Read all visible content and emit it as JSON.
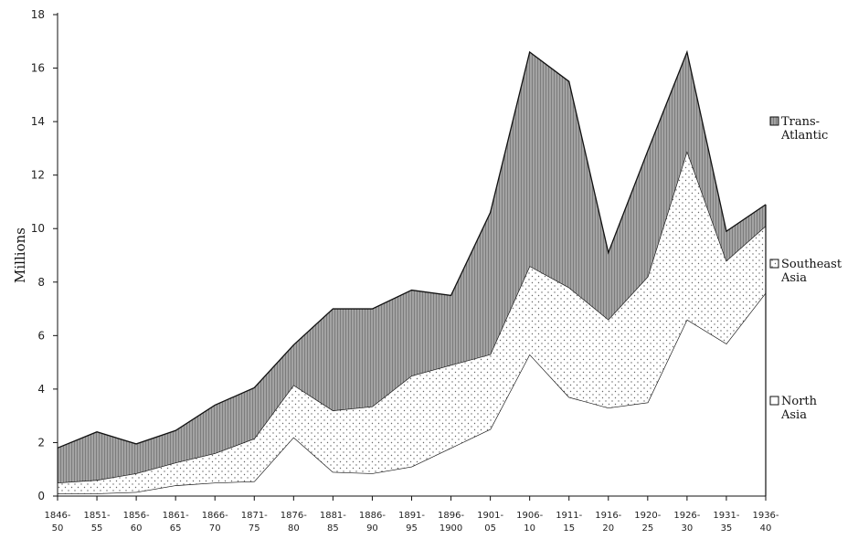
{
  "chart_data": {
    "type": "area",
    "stacked": true,
    "ylabel": "Millions",
    "xlabel": "",
    "title": "",
    "ylim": [
      0,
      18
    ],
    "yticks": [
      0,
      2,
      4,
      6,
      8,
      10,
      12,
      14,
      16,
      18
    ],
    "categories": [
      [
        "1846-",
        "50"
      ],
      [
        "1851-",
        "55"
      ],
      [
        "1856-",
        "60"
      ],
      [
        "1861-",
        "65"
      ],
      [
        "1866-",
        "70"
      ],
      [
        "1871-",
        "75"
      ],
      [
        "1876-",
        "80"
      ],
      [
        "1881-",
        "85"
      ],
      [
        "1886-",
        "90"
      ],
      [
        "1891-",
        "95"
      ],
      [
        "1896-",
        "1900"
      ],
      [
        "1901-",
        "05"
      ],
      [
        "1906-",
        "10"
      ],
      [
        "1911-",
        "15"
      ],
      [
        "1916-",
        "20"
      ],
      [
        "1920-",
        "25"
      ],
      [
        "1926-",
        "30"
      ],
      [
        "1931-",
        "35"
      ],
      [
        "1936-",
        "40"
      ]
    ],
    "legend_position": "right",
    "series": [
      {
        "name": "North Asia",
        "legend_lines": [
          "North",
          "Asia"
        ],
        "pattern": "plain",
        "color": "#ffffff",
        "values": [
          0.1,
          0.1,
          0.15,
          0.4,
          0.5,
          0.55,
          2.2,
          0.9,
          0.85,
          1.1,
          1.8,
          2.5,
          5.3,
          3.7,
          3.3,
          3.5,
          6.6,
          5.7,
          7.6
        ]
      },
      {
        "name": "Southeast Asia",
        "legend_lines": [
          "Southeast",
          "Asia"
        ],
        "pattern": "dotted",
        "color": "#ffffff",
        "values": [
          0.4,
          0.5,
          0.7,
          0.85,
          1.1,
          1.6,
          1.95,
          2.3,
          2.5,
          3.4,
          3.1,
          2.8,
          3.3,
          4.1,
          3.3,
          4.7,
          6.3,
          3.1,
          2.5
        ]
      },
      {
        "name": "Trans-Atlantic",
        "legend_lines": [
          "Trans-",
          "Atlantic"
        ],
        "pattern": "vertical-hatch",
        "color": "#9a9a9a",
        "values": [
          1.3,
          1.8,
          1.1,
          1.2,
          1.8,
          1.9,
          1.5,
          3.8,
          3.65,
          3.2,
          2.6,
          5.3,
          8.0,
          7.7,
          2.5,
          4.7,
          3.7,
          1.1,
          0.8
        ]
      }
    ]
  }
}
